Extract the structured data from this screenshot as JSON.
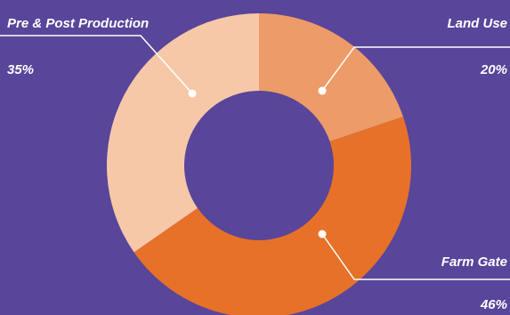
{
  "chart_data": {
    "type": "pie",
    "donut": true,
    "categories": [
      "Land Use",
      "Farm Gate",
      "Pre & Post Production"
    ],
    "values": [
      20,
      46,
      35
    ],
    "value_labels": [
      "20%",
      "46%",
      "35%"
    ],
    "colors": [
      "#ed9b68",
      "#e77129",
      "#f6c8a8"
    ],
    "background": "#59459a",
    "leader_color": "#ffffff",
    "legend": "none",
    "labels": [
      {
        "name": "Land Use",
        "value": "20%"
      },
      {
        "name": "Farm Gate",
        "value": "46%"
      },
      {
        "name": "Pre & Post Production",
        "value": "35%"
      }
    ]
  }
}
